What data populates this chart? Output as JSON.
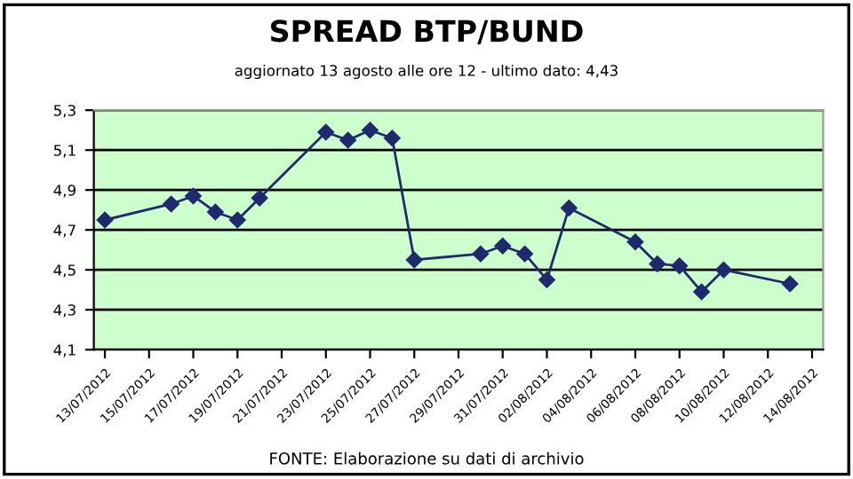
{
  "chart_data": {
    "type": "line",
    "title": "SPREAD BTP/BUND",
    "subtitle": "aggiornato 13 agosto alle ore 12 - ultimo dato: 4,43",
    "x": [
      "2012-07-13",
      "2012-07-16",
      "2012-07-17",
      "2012-07-18",
      "2012-07-19",
      "2012-07-20",
      "2012-07-23",
      "2012-07-24",
      "2012-07-25",
      "2012-07-26",
      "2012-07-27",
      "2012-07-30",
      "2012-07-31",
      "2012-08-01",
      "2012-08-02",
      "2012-08-03",
      "2012-08-06",
      "2012-08-07",
      "2012-08-08",
      "2012-08-09",
      "2012-08-10",
      "2012-08-13"
    ],
    "series": [
      {
        "color": "#1f2a6e",
        "values": [
          4.75,
          4.83,
          4.87,
          4.79,
          4.75,
          4.86,
          5.19,
          5.15,
          5.2,
          5.16,
          4.55,
          4.58,
          4.62,
          4.58,
          4.45,
          4.81,
          4.64,
          4.53,
          4.52,
          4.39,
          4.5,
          4.43
        ]
      }
    ],
    "xlim": [
      "2012-07-12T12:00",
      "2012-08-14T12:00"
    ],
    "xticks": [
      {
        "value": "2012-07-13",
        "label": "13/07/2012"
      },
      {
        "value": "2012-07-15",
        "label": "15/07/2012"
      },
      {
        "value": "2012-07-17",
        "label": "17/07/2012"
      },
      {
        "value": "2012-07-19",
        "label": "19/07/2012"
      },
      {
        "value": "2012-07-21",
        "label": "21/07/2012"
      },
      {
        "value": "2012-07-23",
        "label": "23/07/2012"
      },
      {
        "value": "2012-07-25",
        "label": "25/07/2012"
      },
      {
        "value": "2012-07-27",
        "label": "27/07/2012"
      },
      {
        "value": "2012-07-29",
        "label": "29/07/2012"
      },
      {
        "value": "2012-07-31",
        "label": "31/07/2012"
      },
      {
        "value": "2012-08-02",
        "label": "02/08/2012"
      },
      {
        "value": "2012-08-04",
        "label": "04/08/2012"
      },
      {
        "value": "2012-08-06",
        "label": "06/08/2012"
      },
      {
        "value": "2012-08-08",
        "label": "08/08/2012"
      },
      {
        "value": "2012-08-10",
        "label": "10/08/2012"
      },
      {
        "value": "2012-08-12",
        "label": "12/08/2012"
      },
      {
        "value": "2012-08-14",
        "label": "14/08/2012"
      }
    ],
    "ylim": [
      4.1,
      5.3
    ],
    "yticks": [
      {
        "value": 4.1,
        "label": "4,1"
      },
      {
        "value": 4.3,
        "label": "4,3"
      },
      {
        "value": 4.5,
        "label": "4,5"
      },
      {
        "value": 4.7,
        "label": "4,7"
      },
      {
        "value": 4.9,
        "label": "4,9"
      },
      {
        "value": 5.1,
        "label": "5,1"
      },
      {
        "value": 5.3,
        "label": "5,3"
      }
    ],
    "grid": "y",
    "marker": "diamond",
    "line_style": "solid",
    "legend": false,
    "annotations": [
      "FONTE: Elaborazione su dati di archivio"
    ]
  }
}
